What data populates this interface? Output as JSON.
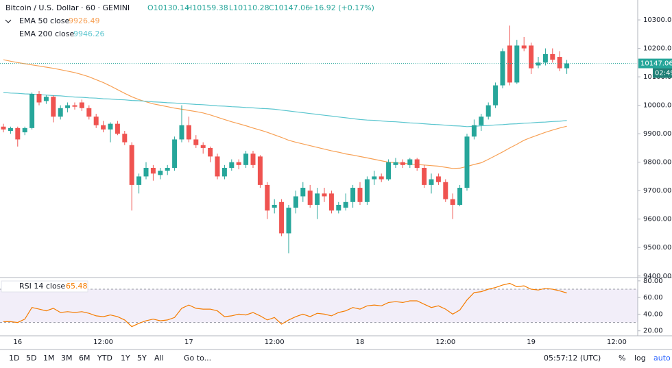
{
  "header": {
    "symbol": "Bitcoin / U.S. Dollar · 60 · GEMINI",
    "open": "O10130.14",
    "high": "H10159.38",
    "low": "L10110.28",
    "close": "C10147.06",
    "change": "+16.92 (+0.17%)"
  },
  "countdown": "02:49",
  "toolbar": {
    "ranges": [
      "1D",
      "5D",
      "1M",
      "3M",
      "6M",
      "YTD",
      "1Y",
      "5Y",
      "All"
    ],
    "goto": "Go to...",
    "clock": "05:57:12 (UTC)",
    "percent": "%",
    "log": "log",
    "auto": "auto"
  },
  "chart_data": [
    {
      "type": "candlestick",
      "up_color": "#26a69a",
      "down_color": "#ef5350",
      "grid": false,
      "last_price_line": true,
      "categories": [
        null,
        null,
        "16",
        null,
        null,
        null,
        null,
        null,
        null,
        null,
        null,
        null,
        null,
        null,
        "12:00",
        null,
        null,
        null,
        null,
        null,
        null,
        null,
        null,
        null,
        null,
        null,
        "17",
        null,
        null,
        null,
        null,
        null,
        null,
        null,
        null,
        null,
        null,
        null,
        "12:00",
        null,
        null,
        null,
        null,
        null,
        null,
        null,
        null,
        null,
        null,
        null,
        "18",
        null,
        null,
        null,
        null,
        null,
        null,
        null,
        null,
        null,
        null,
        null,
        "12:00",
        null,
        null,
        null,
        null,
        null,
        null,
        null,
        null,
        null,
        null,
        null,
        "19",
        null,
        null,
        null,
        null,
        null,
        null,
        null,
        null,
        null,
        null,
        null,
        "12:00",
        null,
        null
      ],
      "open": [
        9925,
        9910,
        9920,
        9905,
        9920,
        10040,
        10015,
        10030,
        9960,
        9990,
        10000,
        10010,
        9990,
        9960,
        9930,
        9915,
        9935,
        9900,
        9860,
        9720,
        9750,
        9780,
        9755,
        9770,
        9780,
        9880,
        9930,
        9880,
        9860,
        9850,
        9820,
        9750,
        9780,
        9800,
        9790,
        9830,
        9820,
        9720,
        9640,
        9660,
        9550,
        9640,
        9680,
        9700,
        9650,
        9690,
        9690,
        9630,
        9640,
        9660,
        9710,
        9660,
        9740,
        9750,
        9740,
        9790,
        9800,
        9790,
        9810,
        9780,
        9720,
        9750,
        9730,
        9670,
        9650,
        9710,
        9890,
        9930,
        9960,
        10000,
        10070,
        10210,
        10080,
        10210,
        10210,
        10140,
        10150,
        10180,
        10170,
        10130.14,
        null,
        null,
        null,
        null,
        null,
        null,
        null,
        null,
        null
      ],
      "high": [
        9935,
        9925,
        9925,
        9925,
        10045,
        10050,
        10035,
        10035,
        10000,
        10010,
        10010,
        10020,
        10000,
        9970,
        9945,
        9940,
        9945,
        9910,
        9870,
        9760,
        9800,
        9790,
        9780,
        9790,
        9890,
        10000,
        9960,
        9895,
        9870,
        9855,
        9830,
        9790,
        9810,
        9810,
        9840,
        9840,
        9825,
        9730,
        9670,
        9670,
        9650,
        9700,
        9730,
        9720,
        9710,
        9710,
        9700,
        9660,
        9690,
        9720,
        9730,
        9750,
        9770,
        9760,
        9810,
        9815,
        9810,
        9815,
        9815,
        9790,
        9760,
        9760,
        9740,
        9690,
        9720,
        9900,
        9950,
        9970,
        10010,
        10080,
        10200,
        10280,
        10230,
        10240,
        10220,
        10170,
        10200,
        10200,
        10190,
        10159.38,
        null,
        null,
        null,
        null,
        null,
        null,
        null,
        null,
        null
      ],
      "low": [
        9905,
        9900,
        9855,
        9895,
        9915,
        10000,
        10005,
        9940,
        9950,
        9975,
        9985,
        9980,
        9950,
        9920,
        9905,
        9870,
        9895,
        9860,
        9630,
        9690,
        9740,
        9735,
        9740,
        9755,
        9770,
        9870,
        9870,
        9850,
        9830,
        9800,
        9740,
        9740,
        9770,
        9775,
        9780,
        9780,
        9710,
        9600,
        9620,
        9540,
        9480,
        9620,
        9660,
        9640,
        9600,
        9660,
        9620,
        9620,
        9630,
        9640,
        9650,
        9650,
        9720,
        9730,
        9735,
        9780,
        9780,
        9780,
        9770,
        9710,
        9690,
        9720,
        9660,
        9600,
        9645,
        9700,
        9880,
        9910,
        9950,
        9990,
        10060,
        10070,
        10075,
        10190,
        10110,
        10130,
        10140,
        10150,
        10120,
        10110.28,
        null,
        null,
        null,
        null,
        null,
        null,
        null,
        null,
        null
      ],
      "close": [
        9915,
        9920,
        9880,
        9920,
        10040,
        10010,
        10030,
        9960,
        9990,
        10000,
        9995,
        9990,
        9960,
        9930,
        9915,
        9935,
        9900,
        9870,
        9720,
        9750,
        9780,
        9760,
        9770,
        9780,
        9880,
        9930,
        9880,
        9860,
        9850,
        9820,
        9750,
        9780,
        9800,
        9790,
        9830,
        9790,
        9720,
        9630,
        9650,
        9550,
        9640,
        9680,
        9710,
        9650,
        9690,
        9680,
        9630,
        9650,
        9660,
        9710,
        9660,
        9740,
        9750,
        9740,
        9800,
        9800,
        9790,
        9810,
        9780,
        9720,
        9740,
        9730,
        9670,
        9650,
        9710,
        9890,
        9930,
        9960,
        10000,
        10070,
        10190,
        10080,
        10210,
        10200,
        10130,
        10150,
        10180,
        10160,
        10130,
        10147.06,
        null,
        null,
        null,
        null,
        null,
        null,
        null,
        null,
        null
      ],
      "series": [
        {
          "name": "EMA 50 close",
          "color": "#f7a054",
          "values": [
            10160,
            10155,
            10150,
            10146,
            10142,
            10138,
            10134,
            10130,
            10125,
            10120,
            10115,
            10108,
            10100,
            10090,
            10080,
            10068,
            10055,
            10042,
            10030,
            10020,
            10012,
            10005,
            10000,
            9995,
            9990,
            9986,
            9982,
            9978,
            9973,
            9966,
            9958,
            9950,
            9942,
            9935,
            9928,
            9920,
            9913,
            9905,
            9896,
            9887,
            9877,
            9870,
            9864,
            9858,
            9852,
            9846,
            9840,
            9835,
            9829,
            9825,
            9820,
            9815,
            9810,
            9805,
            9800,
            9798,
            9796,
            9794,
            9792,
            9790,
            9788,
            9786,
            9782,
            9778,
            9779,
            9785,
            9792,
            9798,
            9810,
            9823,
            9836,
            9850,
            9863,
            9877,
            9887,
            9896,
            9905,
            9913,
            9920,
            9926.49,
            null,
            null,
            null,
            null,
            null,
            null,
            null,
            null,
            null
          ]
        },
        {
          "name": "EMA 200 close",
          "color": "#5cc6cf",
          "values": [
            10045,
            10043,
            10042,
            10040,
            10039,
            10037,
            10036,
            10034,
            10033,
            10031,
            10029,
            10028,
            10026,
            10025,
            10023,
            10022,
            10020,
            10019,
            10017,
            10016,
            10014,
            10012,
            10011,
            10009,
            10008,
            10006,
            10005,
            10003,
            10002,
            10000,
            9998,
            9997,
            9995,
            9994,
            9992,
            9991,
            9989,
            9988,
            9986,
            9983,
            9980,
            9977,
            9974,
            9971,
            9968,
            9965,
            9962,
            9959,
            9956,
            9953,
            9950,
            9948,
            9947,
            9945,
            9943,
            9942,
            9940,
            9938,
            9937,
            9935,
            9933,
            9932,
            9930,
            9928,
            9927,
            9925,
            9926,
            9928,
            9929,
            9931,
            9932,
            9934,
            9935,
            9937,
            9938,
            9940,
            9941,
            9943,
            9944,
            9946.26,
            null,
            null,
            null,
            null,
            null,
            null,
            null,
            null,
            null
          ]
        }
      ],
      "ylim": [
        9397,
        10370
      ],
      "yticks": [
        {
          "value": 9400,
          "label": "9400.00"
        },
        {
          "value": 9500,
          "label": "9500.00"
        },
        {
          "value": 9600,
          "label": "9600.00"
        },
        {
          "value": 9700,
          "label": "9700.00"
        },
        {
          "value": 9800,
          "label": "9800.00"
        },
        {
          "value": 9900,
          "label": "9900.00"
        },
        {
          "value": 10000,
          "label": "10000.00"
        },
        {
          "value": 10100,
          "label": "10100.00"
        },
        {
          "value": 10200,
          "label": "10200.00"
        },
        {
          "value": 10300,
          "label": "10300.00"
        }
      ]
    },
    {
      "type": "line",
      "band": [
        30,
        70
      ],
      "band_color": "#7e57c2",
      "series": [
        {
          "name": "RSI 14 close",
          "color": "#f57c00",
          "values": [
            31,
            31,
            30,
            34,
            48,
            46,
            44,
            47,
            42,
            43,
            42,
            43,
            41,
            38,
            37,
            39,
            37,
            33,
            25,
            29,
            32,
            34,
            32,
            33,
            36,
            47,
            51,
            47,
            46,
            46,
            44,
            37,
            38,
            40,
            39,
            42,
            38,
            33,
            36,
            28,
            33,
            37,
            40,
            37,
            41,
            40,
            38,
            42,
            44,
            48,
            46,
            50,
            51,
            50,
            54,
            55,
            54,
            56,
            56,
            52,
            48,
            50,
            46,
            40,
            45,
            57,
            66,
            67,
            70,
            72,
            75,
            77,
            73,
            74,
            70,
            69,
            71,
            70,
            68,
            65.48,
            null,
            null,
            null,
            null,
            null,
            null,
            null,
            null,
            null
          ]
        }
      ],
      "ylim": [
        14,
        84
      ],
      "yticks": [
        {
          "value": 20,
          "label": "20.00"
        },
        {
          "value": 40,
          "label": "40.00"
        },
        {
          "value": 60,
          "label": "60.00"
        },
        {
          "value": 80,
          "label": "80.00"
        }
      ]
    }
  ]
}
